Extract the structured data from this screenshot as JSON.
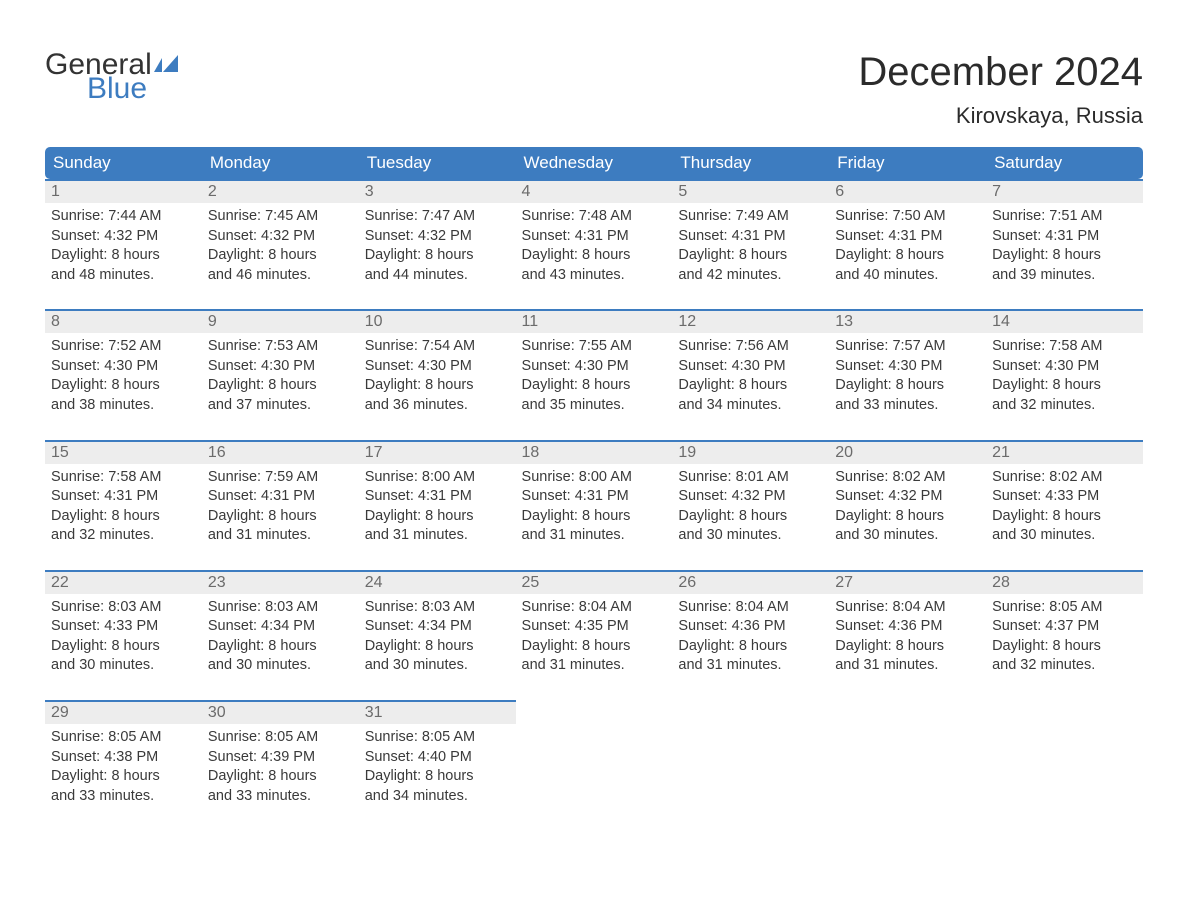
{
  "logo": {
    "text_general": "General",
    "text_blue": "Blue",
    "flag_color": "#3d7cc0"
  },
  "header": {
    "title": "December 2024",
    "location": "Kirovskaya, Russia"
  },
  "colors": {
    "header_bg": "#3d7cc0",
    "header_text": "#ffffff",
    "daynum_bg": "#ededed",
    "daynum_text": "#6b6b6b",
    "body_text": "#3a3a3a",
    "row_border": "#3d7cc0",
    "page_bg": "#ffffff"
  },
  "typography": {
    "title_fontsize": 40,
    "location_fontsize": 22,
    "dayheader_fontsize": 17,
    "cell_fontsize": 14.5
  },
  "calendar": {
    "type": "table",
    "day_headers": [
      "Sunday",
      "Monday",
      "Tuesday",
      "Wednesday",
      "Thursday",
      "Friday",
      "Saturday"
    ],
    "weeks": [
      [
        {
          "day": "1",
          "sunrise": "Sunrise: 7:44 AM",
          "sunset": "Sunset: 4:32 PM",
          "dl1": "Daylight: 8 hours",
          "dl2": "and 48 minutes."
        },
        {
          "day": "2",
          "sunrise": "Sunrise: 7:45 AM",
          "sunset": "Sunset: 4:32 PM",
          "dl1": "Daylight: 8 hours",
          "dl2": "and 46 minutes."
        },
        {
          "day": "3",
          "sunrise": "Sunrise: 7:47 AM",
          "sunset": "Sunset: 4:32 PM",
          "dl1": "Daylight: 8 hours",
          "dl2": "and 44 minutes."
        },
        {
          "day": "4",
          "sunrise": "Sunrise: 7:48 AM",
          "sunset": "Sunset: 4:31 PM",
          "dl1": "Daylight: 8 hours",
          "dl2": "and 43 minutes."
        },
        {
          "day": "5",
          "sunrise": "Sunrise: 7:49 AM",
          "sunset": "Sunset: 4:31 PM",
          "dl1": "Daylight: 8 hours",
          "dl2": "and 42 minutes."
        },
        {
          "day": "6",
          "sunrise": "Sunrise: 7:50 AM",
          "sunset": "Sunset: 4:31 PM",
          "dl1": "Daylight: 8 hours",
          "dl2": "and 40 minutes."
        },
        {
          "day": "7",
          "sunrise": "Sunrise: 7:51 AM",
          "sunset": "Sunset: 4:31 PM",
          "dl1": "Daylight: 8 hours",
          "dl2": "and 39 minutes."
        }
      ],
      [
        {
          "day": "8",
          "sunrise": "Sunrise: 7:52 AM",
          "sunset": "Sunset: 4:30 PM",
          "dl1": "Daylight: 8 hours",
          "dl2": "and 38 minutes."
        },
        {
          "day": "9",
          "sunrise": "Sunrise: 7:53 AM",
          "sunset": "Sunset: 4:30 PM",
          "dl1": "Daylight: 8 hours",
          "dl2": "and 37 minutes."
        },
        {
          "day": "10",
          "sunrise": "Sunrise: 7:54 AM",
          "sunset": "Sunset: 4:30 PM",
          "dl1": "Daylight: 8 hours",
          "dl2": "and 36 minutes."
        },
        {
          "day": "11",
          "sunrise": "Sunrise: 7:55 AM",
          "sunset": "Sunset: 4:30 PM",
          "dl1": "Daylight: 8 hours",
          "dl2": "and 35 minutes."
        },
        {
          "day": "12",
          "sunrise": "Sunrise: 7:56 AM",
          "sunset": "Sunset: 4:30 PM",
          "dl1": "Daylight: 8 hours",
          "dl2": "and 34 minutes."
        },
        {
          "day": "13",
          "sunrise": "Sunrise: 7:57 AM",
          "sunset": "Sunset: 4:30 PM",
          "dl1": "Daylight: 8 hours",
          "dl2": "and 33 minutes."
        },
        {
          "day": "14",
          "sunrise": "Sunrise: 7:58 AM",
          "sunset": "Sunset: 4:30 PM",
          "dl1": "Daylight: 8 hours",
          "dl2": "and 32 minutes."
        }
      ],
      [
        {
          "day": "15",
          "sunrise": "Sunrise: 7:58 AM",
          "sunset": "Sunset: 4:31 PM",
          "dl1": "Daylight: 8 hours",
          "dl2": "and 32 minutes."
        },
        {
          "day": "16",
          "sunrise": "Sunrise: 7:59 AM",
          "sunset": "Sunset: 4:31 PM",
          "dl1": "Daylight: 8 hours",
          "dl2": "and 31 minutes."
        },
        {
          "day": "17",
          "sunrise": "Sunrise: 8:00 AM",
          "sunset": "Sunset: 4:31 PM",
          "dl1": "Daylight: 8 hours",
          "dl2": "and 31 minutes."
        },
        {
          "day": "18",
          "sunrise": "Sunrise: 8:00 AM",
          "sunset": "Sunset: 4:31 PM",
          "dl1": "Daylight: 8 hours",
          "dl2": "and 31 minutes."
        },
        {
          "day": "19",
          "sunrise": "Sunrise: 8:01 AM",
          "sunset": "Sunset: 4:32 PM",
          "dl1": "Daylight: 8 hours",
          "dl2": "and 30 minutes."
        },
        {
          "day": "20",
          "sunrise": "Sunrise: 8:02 AM",
          "sunset": "Sunset: 4:32 PM",
          "dl1": "Daylight: 8 hours",
          "dl2": "and 30 minutes."
        },
        {
          "day": "21",
          "sunrise": "Sunrise: 8:02 AM",
          "sunset": "Sunset: 4:33 PM",
          "dl1": "Daylight: 8 hours",
          "dl2": "and 30 minutes."
        }
      ],
      [
        {
          "day": "22",
          "sunrise": "Sunrise: 8:03 AM",
          "sunset": "Sunset: 4:33 PM",
          "dl1": "Daylight: 8 hours",
          "dl2": "and 30 minutes."
        },
        {
          "day": "23",
          "sunrise": "Sunrise: 8:03 AM",
          "sunset": "Sunset: 4:34 PM",
          "dl1": "Daylight: 8 hours",
          "dl2": "and 30 minutes."
        },
        {
          "day": "24",
          "sunrise": "Sunrise: 8:03 AM",
          "sunset": "Sunset: 4:34 PM",
          "dl1": "Daylight: 8 hours",
          "dl2": "and 30 minutes."
        },
        {
          "day": "25",
          "sunrise": "Sunrise: 8:04 AM",
          "sunset": "Sunset: 4:35 PM",
          "dl1": "Daylight: 8 hours",
          "dl2": "and 31 minutes."
        },
        {
          "day": "26",
          "sunrise": "Sunrise: 8:04 AM",
          "sunset": "Sunset: 4:36 PM",
          "dl1": "Daylight: 8 hours",
          "dl2": "and 31 minutes."
        },
        {
          "day": "27",
          "sunrise": "Sunrise: 8:04 AM",
          "sunset": "Sunset: 4:36 PM",
          "dl1": "Daylight: 8 hours",
          "dl2": "and 31 minutes."
        },
        {
          "day": "28",
          "sunrise": "Sunrise: 8:05 AM",
          "sunset": "Sunset: 4:37 PM",
          "dl1": "Daylight: 8 hours",
          "dl2": "and 32 minutes."
        }
      ],
      [
        {
          "day": "29",
          "sunrise": "Sunrise: 8:05 AM",
          "sunset": "Sunset: 4:38 PM",
          "dl1": "Daylight: 8 hours",
          "dl2": "and 33 minutes."
        },
        {
          "day": "30",
          "sunrise": "Sunrise: 8:05 AM",
          "sunset": "Sunset: 4:39 PM",
          "dl1": "Daylight: 8 hours",
          "dl2": "and 33 minutes."
        },
        {
          "day": "31",
          "sunrise": "Sunrise: 8:05 AM",
          "sunset": "Sunset: 4:40 PM",
          "dl1": "Daylight: 8 hours",
          "dl2": "and 34 minutes."
        },
        null,
        null,
        null,
        null
      ]
    ]
  }
}
